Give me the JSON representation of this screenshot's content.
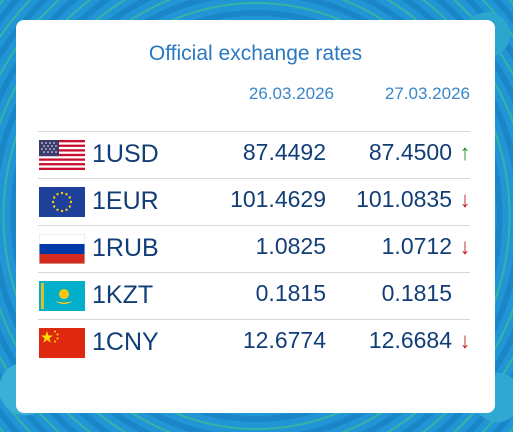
{
  "widget": {
    "title": "Official exchange rates",
    "date_prev": "26.03.2026",
    "date_curr": "27.03.2026"
  },
  "colors": {
    "title": "#2a78c2",
    "text": "#123e78",
    "up": "#1b8f3a",
    "down": "#c21f2a"
  },
  "rates": [
    {
      "code": "1USD",
      "flag": "us-flag-icon",
      "prev": "87.4492",
      "curr": "87.4500",
      "trend": "up",
      "trend_glyph": "↑"
    },
    {
      "code": "1EUR",
      "flag": "eu-flag-icon",
      "prev": "101.4629",
      "curr": "101.0835",
      "trend": "down",
      "trend_glyph": "↓"
    },
    {
      "code": "1RUB",
      "flag": "ru-flag-icon",
      "prev": "1.0825",
      "curr": "1.0712",
      "trend": "down",
      "trend_glyph": "↓"
    },
    {
      "code": "1KZT",
      "flag": "kz-flag-icon",
      "prev": "0.1815",
      "curr": "0.1815",
      "trend": "none",
      "trend_glyph": ""
    },
    {
      "code": "1CNY",
      "flag": "cn-flag-icon",
      "prev": "12.6774",
      "curr": "12.6684",
      "trend": "down",
      "trend_glyph": "↓"
    }
  ]
}
